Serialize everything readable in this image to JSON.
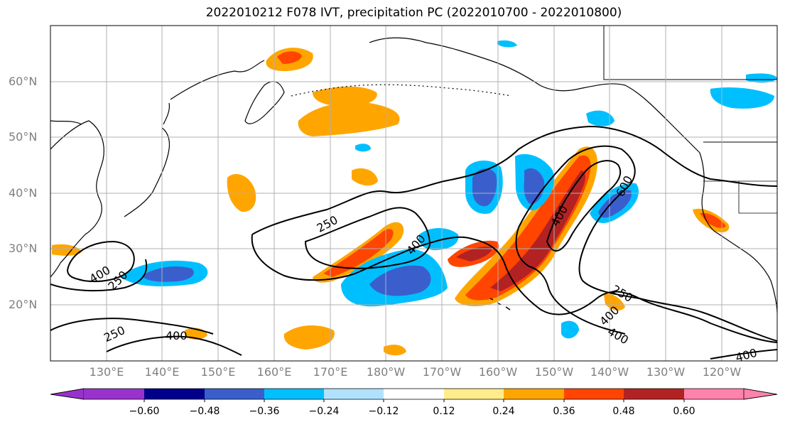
{
  "title": "2022010212 F078 IVT, precipitation PC (2022010700 - 2022010800)",
  "lat_labels": [
    "60°N",
    "50°N",
    "40°N",
    "30°N",
    "20°N"
  ],
  "lon_labels": [
    "130°E",
    "140°E",
    "150°E",
    "160°E",
    "170°E",
    "180°W",
    "170°W",
    "160°W",
    "150°W",
    "140°W",
    "130°W",
    "120°W"
  ],
  "colorbar": {
    "ticks": [
      "−0.60",
      "−0.48",
      "−0.36",
      "−0.24",
      "−0.12",
      "0.12",
      "0.24",
      "0.36",
      "0.48",
      "0.60"
    ],
    "colors": [
      "#9932cc",
      "#00008b",
      "#3a5fcd",
      "#00bfff",
      "#b0e2ff",
      "#ffffff",
      "#ffec8b",
      "#ffa500",
      "#ff4500",
      "#b22222",
      "#ff82ab"
    ]
  },
  "contour_labels": [
    "250",
    "400",
    "600",
    "400",
    "250",
    "400",
    "250",
    "250",
    "400",
    "400",
    "400",
    "400"
  ],
  "colors": {
    "land_line": "#000000",
    "grid": "#b0b0b0",
    "contour": "#000000"
  }
}
